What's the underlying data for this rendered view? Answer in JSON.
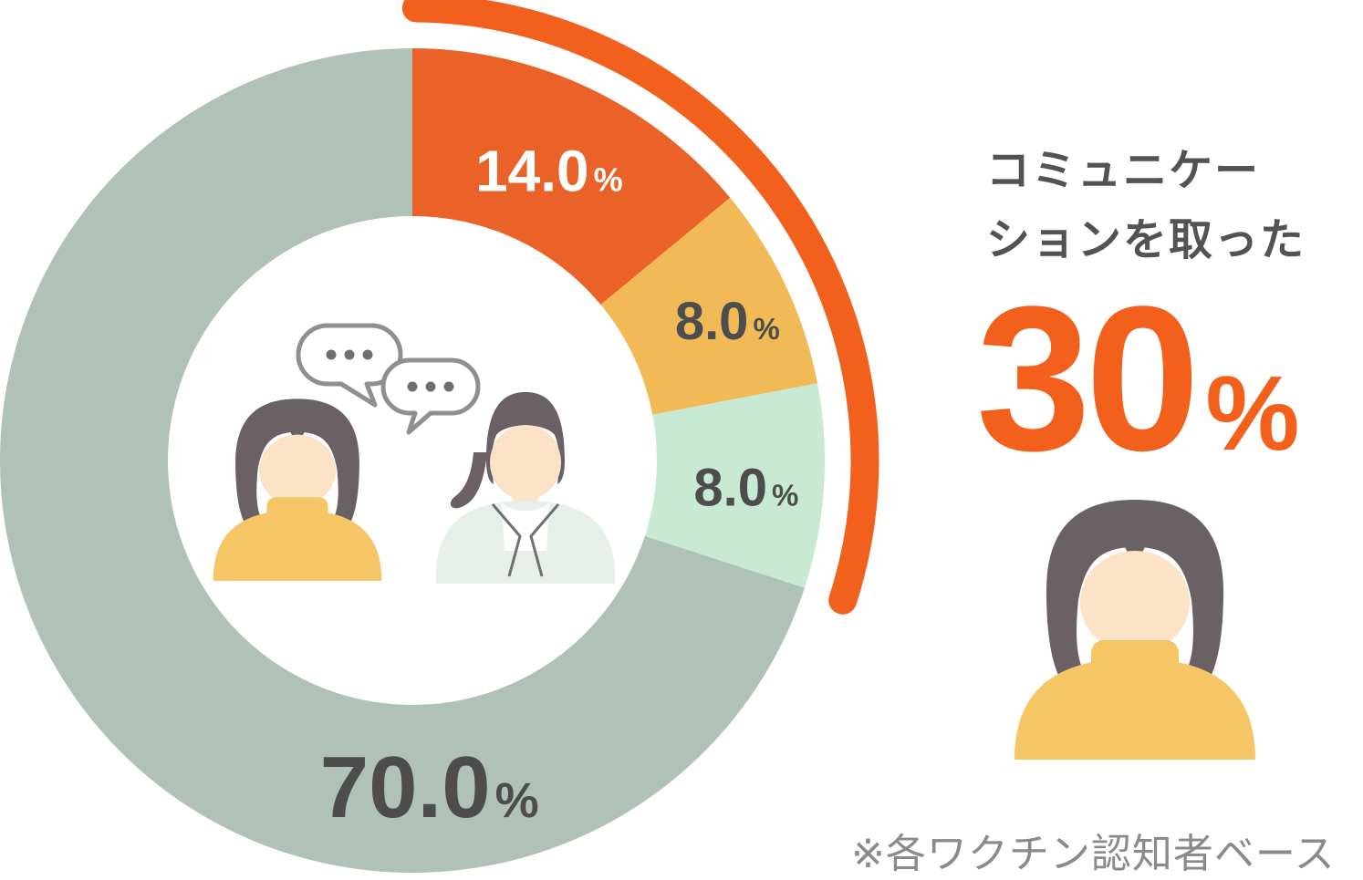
{
  "chart_data": {
    "type": "pie",
    "subtype": "donut",
    "title": "",
    "slices": [
      {
        "label": "14.0",
        "unit": "%",
        "value": 14.0,
        "color": "#EA6227",
        "label_color": "#FFFFFF"
      },
      {
        "label": "8.0",
        "unit": "%",
        "value": 8.0,
        "color": "#F2BA57",
        "label_color": "#4D4D4D"
      },
      {
        "label": "8.0",
        "unit": "%",
        "value": 8.0,
        "color": "#C8E9D3",
        "label_color": "#4D4D4D"
      },
      {
        "label": "70.0",
        "unit": "%",
        "value": 70.0,
        "color": "#B0C2B7",
        "label_color": "#4D4D4D"
      }
    ],
    "start_angle_deg": 0,
    "direction": "clockwise",
    "legend": "none",
    "highlight_arc": {
      "covers_percent": 30,
      "color": "#F2601E"
    }
  },
  "annotation": {
    "line1": "コミュニケー",
    "line2": "ションを取った",
    "value": "30",
    "unit": "%",
    "accent_color": "#F3601B",
    "note": "※各ワクチン認知者ベース"
  },
  "illustrations": {
    "center": [
      "woman-speaking",
      "pharmacist",
      "speech-bubbles"
    ],
    "right": "woman"
  }
}
